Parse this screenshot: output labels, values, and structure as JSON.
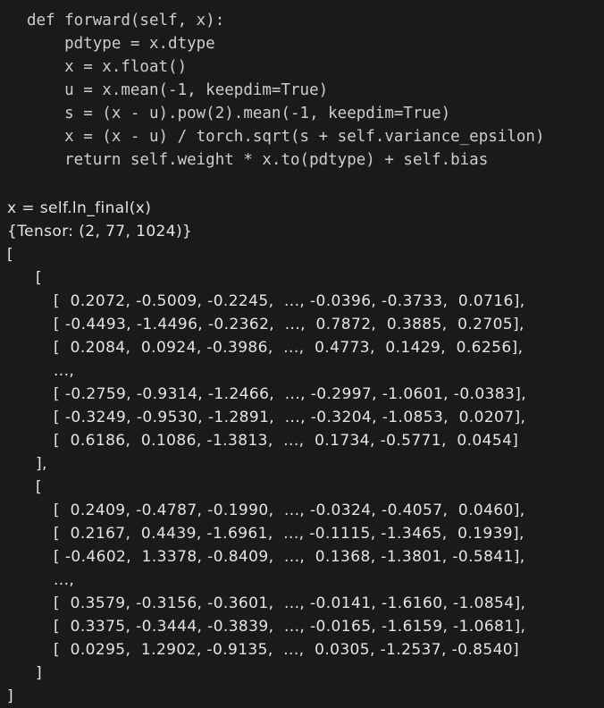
{
  "theme": {
    "background": "#1a1a1a",
    "code_text_color": "#cdcdcd",
    "annotation_text_color": "#e4e4e4"
  },
  "code_block": {
    "language": "python",
    "lines": [
      "def forward(self, x):",
      "    pdtype = x.dtype",
      "    x = x.float()",
      "    u = x.mean(-1, keepdim=True)",
      "    s = (x - u).pow(2).mean(-1, keepdim=True)",
      "    x = (x - u) / torch.sqrt(s + self.variance_epsilon)",
      "    return self.weight * x.to(pdtype) + self.bias"
    ]
  },
  "annotation": {
    "expression": "x = self.ln_final(x)",
    "shape": "{Tensor: (2, 77, 1024)}",
    "tensor_lines": [
      {
        "indent": 0,
        "text": "["
      },
      {
        "indent": 1,
        "text": "["
      },
      {
        "indent": 2,
        "text": "[  0.2072, -0.5009, -0.2245,  ..., -0.0396, -0.3733,  0.0716],"
      },
      {
        "indent": 2,
        "text": "[ -0.4493, -1.4496, -0.2362,  ...,  0.7872,  0.3885,  0.2705],"
      },
      {
        "indent": 2,
        "text": "[  0.2084,  0.0924, -0.3986,  ...,  0.4773,  0.1429,  0.6256],"
      },
      {
        "indent": 2,
        "text": "...,"
      },
      {
        "indent": 2,
        "text": "[ -0.2759, -0.9314, -1.2466,  ..., -0.2997, -1.0601, -0.0383],"
      },
      {
        "indent": 2,
        "text": "[ -0.3249, -0.9530, -1.2891,  ..., -0.3204, -1.0853,  0.0207],"
      },
      {
        "indent": 2,
        "text": "[  0.6186,  0.1086, -1.3813,  ...,  0.1734, -0.5771,  0.0454]"
      },
      {
        "indent": 1,
        "text": "],"
      },
      {
        "indent": 1,
        "text": "["
      },
      {
        "indent": 2,
        "text": "[  0.2409, -0.4787, -0.1990,  ..., -0.0324, -0.4057,  0.0460],"
      },
      {
        "indent": 2,
        "text": "[  0.2167,  0.4439, -1.6961,  ..., -0.1115, -1.3465,  0.1939],"
      },
      {
        "indent": 2,
        "text": "[ -0.4602,  1.3378, -0.8409,  ...,  0.1368, -1.3801, -0.5841],"
      },
      {
        "indent": 2,
        "text": "...,"
      },
      {
        "indent": 2,
        "text": "[  0.3579, -0.3156, -0.3601,  ..., -0.0141, -1.6160, -1.0854],"
      },
      {
        "indent": 2,
        "text": "[  0.3375, -0.3444, -0.3839,  ..., -0.0165, -1.6159, -1.0681],"
      },
      {
        "indent": 2,
        "text": "[  0.0295,  1.2902, -0.9135,  ...,  0.0305, -1.2537, -0.8540]"
      },
      {
        "indent": 1,
        "text": "]"
      },
      {
        "indent": 0,
        "text": "]"
      }
    ]
  }
}
